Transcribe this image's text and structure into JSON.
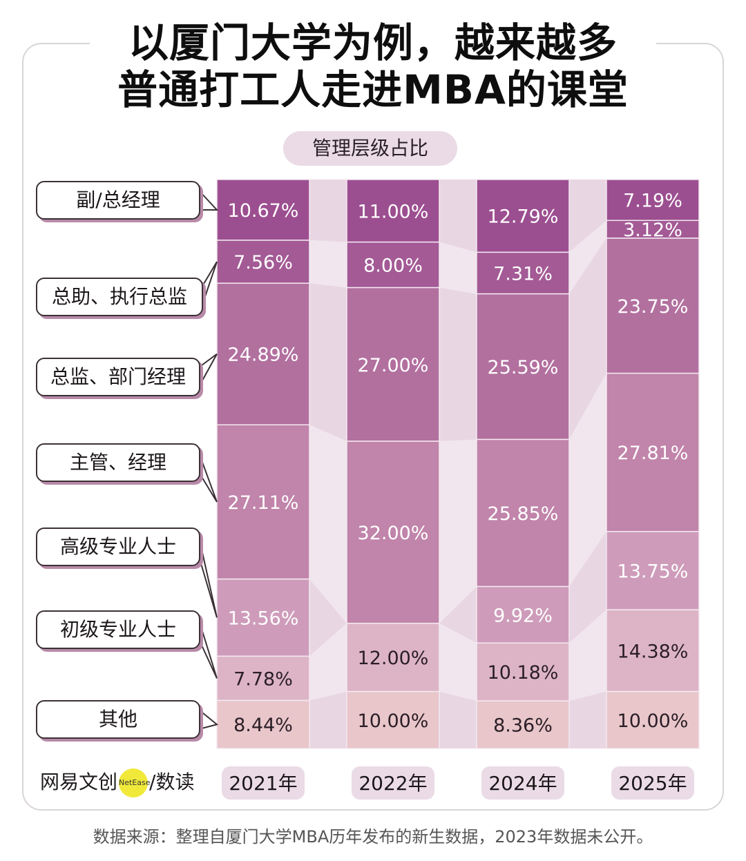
{
  "title": {
    "line1": "以厦门大学为例，越来越多",
    "line2": "普通打工人走进MBA的课堂"
  },
  "subtitle": "管理层级占比",
  "brand": {
    "name": "网易文创",
    "badge": "NetEase",
    "section": "/数读"
  },
  "source": "数据来源：整理自厦门大学MBA历年发布的新生数据，2023年数据未公开。",
  "colors": {
    "level_colors": [
      "#9c4f90",
      "#a35a95",
      "#b2709f",
      "#c184aa",
      "#ce9cba",
      "#ddb4c6",
      "#e8c6ca"
    ],
    "flow": "#ecdde8",
    "frame": "#d9d4d8",
    "pill": "#eadbe6"
  },
  "chart_data": {
    "type": "bar",
    "stacked": true,
    "percent": true,
    "categories": [
      "2021年",
      "2022年",
      "2024年",
      "2025年"
    ],
    "series": [
      {
        "name": "副/总经理",
        "values": [
          10.67,
          11.0,
          12.79,
          7.19
        ]
      },
      {
        "name": "总助、执行总监",
        "values": [
          7.56,
          8.0,
          7.31,
          3.12
        ]
      },
      {
        "name": "总监、部门经理",
        "values": [
          24.89,
          27.0,
          25.59,
          23.75
        ]
      },
      {
        "name": "主管、经理",
        "values": [
          27.11,
          32.0,
          25.85,
          27.81
        ]
      },
      {
        "name": "高级专业人士",
        "values": [
          13.56,
          0,
          9.92,
          13.75
        ]
      },
      {
        "name": "初级专业人士",
        "values": [
          7.78,
          12.0,
          10.18,
          14.38
        ]
      },
      {
        "name": "其他",
        "values": [
          8.44,
          10.0,
          8.36,
          10.0
        ]
      }
    ],
    "value_labels": [
      [
        "10.67%",
        "7.56%",
        "24.89%",
        "27.11%",
        "13.56%",
        "7.78%",
        "8.44%"
      ],
      [
        "11.00%",
        "8.00%",
        "27.00%",
        "32.00%",
        "",
        "12.00%",
        "10.00%"
      ],
      [
        "12.79%",
        "7.31%",
        "25.59%",
        "25.85%",
        "9.92%",
        "10.18%",
        "8.36%"
      ],
      [
        "7.19%",
        "3.12%",
        "23.75%",
        "27.81%",
        "13.75%",
        "14.38%",
        "10.00%"
      ]
    ],
    "legend": "left"
  }
}
